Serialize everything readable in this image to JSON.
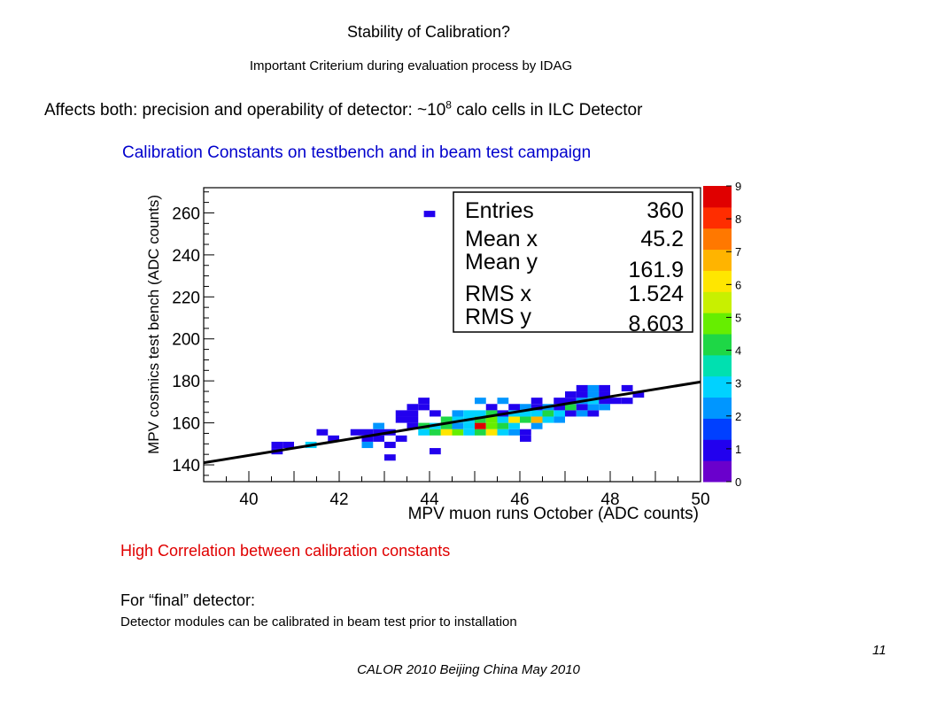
{
  "slide": {
    "title": "Stability of Calibration?",
    "subtitle": "Important Criterium during evaluation process by IDAG",
    "affects_prefix": "Affects both: precision and operability of detector: ~10",
    "affects_exponent": "8",
    "affects_suffix": " calo cells in ILC Detector",
    "calib_heading": "Calibration Constants on testbench and in beam test campaign",
    "correlation_note": "High Correlation between calibration constants",
    "final_label": "For “final” detector:",
    "final_desc": "Detector modules can be calibrated in beam test prior to installation",
    "page_number": "11",
    "footer": "CALOR 2010 Beijing China May 2010"
  },
  "colors": {
    "title_blue": "#0000cc",
    "note_red": "#e00000"
  },
  "chart_data": {
    "type": "heatmap",
    "title": "",
    "xlabel": "MPV muon runs October (ADC counts)",
    "ylabel": "MPV cosmics test bench (ADC counts)",
    "xlim": [
      39,
      50
    ],
    "ylim": [
      132,
      272
    ],
    "xticks": [
      40,
      42,
      44,
      46,
      48,
      50
    ],
    "yticks": [
      140,
      160,
      180,
      200,
      220,
      240,
      260
    ],
    "z_range": [
      0,
      9
    ],
    "z_ticks": [
      0,
      1,
      2,
      3,
      4,
      5,
      6,
      7,
      8,
      9
    ],
    "bin_size": {
      "x": 0.25,
      "y": 3
    },
    "fit_line": {
      "x": [
        39,
        50
      ],
      "y": [
        141,
        179.5
      ]
    },
    "stats_box": [
      {
        "label": "Entries",
        "value": "360"
      },
      {
        "label": "Mean x",
        "value": "45.2"
      },
      {
        "label": "Mean y",
        "value": "161.9"
      },
      {
        "label": "RMS x",
        "value": "1.524"
      },
      {
        "label": "RMS y",
        "value": "8.603"
      }
    ],
    "bins": [
      [
        44.0,
        259.5,
        1
      ],
      [
        40.625,
        149.5,
        1
      ],
      [
        40.875,
        149.5,
        1
      ],
      [
        40.625,
        146.5,
        1
      ],
      [
        41.375,
        149.5,
        3
      ],
      [
        41.625,
        155.5,
        1
      ],
      [
        41.875,
        152.5,
        1
      ],
      [
        42.375,
        155.5,
        1
      ],
      [
        42.625,
        155.5,
        1
      ],
      [
        42.625,
        152.5,
        1
      ],
      [
        42.875,
        155.5,
        1
      ],
      [
        42.625,
        149.5,
        2
      ],
      [
        42.875,
        152.5,
        1
      ],
      [
        43.125,
        149.5,
        1
      ],
      [
        43.125,
        143.5,
        1
      ],
      [
        42.875,
        158.5,
        2
      ],
      [
        43.125,
        155.5,
        1
      ],
      [
        43.375,
        152.5,
        1
      ],
      [
        43.375,
        161.5,
        1
      ],
      [
        43.625,
        161.5,
        1
      ],
      [
        43.625,
        158.5,
        1
      ],
      [
        43.875,
        158.5,
        4
      ],
      [
        43.375,
        164.5,
        1
      ],
      [
        43.625,
        164.5,
        1
      ],
      [
        43.625,
        167.5,
        1
      ],
      [
        43.875,
        167.5,
        1
      ],
      [
        43.875,
        170.5,
        1
      ],
      [
        43.875,
        155.5,
        3
      ],
      [
        44.125,
        155.5,
        4
      ],
      [
        44.375,
        155.5,
        6
      ],
      [
        44.625,
        155.5,
        5
      ],
      [
        44.125,
        158.5,
        3
      ],
      [
        44.375,
        158.5,
        4
      ],
      [
        44.625,
        158.5,
        2
      ],
      [
        44.875,
        158.5,
        3
      ],
      [
        44.375,
        161.5,
        4
      ],
      [
        44.625,
        161.5,
        3
      ],
      [
        44.875,
        161.5,
        3
      ],
      [
        44.125,
        164.5,
        1
      ],
      [
        44.625,
        164.5,
        2
      ],
      [
        44.875,
        164.5,
        3
      ],
      [
        44.125,
        146.5,
        1
      ],
      [
        44.875,
        155.5,
        3
      ],
      [
        45.125,
        155.5,
        4
      ],
      [
        45.375,
        155.5,
        6
      ],
      [
        45.625,
        155.5,
        3
      ],
      [
        45.875,
        155.5,
        2
      ],
      [
        45.125,
        158.5,
        9
      ],
      [
        45.375,
        158.5,
        5
      ],
      [
        45.625,
        158.5,
        4
      ],
      [
        45.875,
        158.5,
        3
      ],
      [
        45.125,
        161.5,
        4
      ],
      [
        45.375,
        161.5,
        5
      ],
      [
        45.625,
        161.5,
        3
      ],
      [
        45.875,
        161.5,
        6
      ],
      [
        45.125,
        164.5,
        3
      ],
      [
        45.375,
        164.5,
        4
      ],
      [
        45.625,
        164.5,
        1
      ],
      [
        45.875,
        164.5,
        3
      ],
      [
        45.375,
        167.5,
        1
      ],
      [
        45.875,
        167.5,
        1
      ],
      [
        45.125,
        170.5,
        2
      ],
      [
        45.625,
        170.5,
        2
      ],
      [
        46.125,
        155.5,
        1
      ],
      [
        46.125,
        152.5,
        1
      ],
      [
        46.375,
        158.5,
        2
      ],
      [
        46.125,
        161.5,
        4
      ],
      [
        46.375,
        161.5,
        7
      ],
      [
        46.625,
        161.5,
        3
      ],
      [
        46.875,
        161.5,
        2
      ],
      [
        46.125,
        164.5,
        3
      ],
      [
        46.375,
        164.5,
        3
      ],
      [
        46.625,
        164.5,
        4
      ],
      [
        46.875,
        164.5,
        3
      ],
      [
        46.125,
        167.5,
        2
      ],
      [
        46.375,
        167.5,
        1
      ],
      [
        46.625,
        167.5,
        2
      ],
      [
        46.875,
        167.5,
        1
      ],
      [
        46.375,
        170.5,
        1
      ],
      [
        46.875,
        170.5,
        1
      ],
      [
        47.125,
        164.5,
        1
      ],
      [
        47.375,
        164.5,
        2
      ],
      [
        47.625,
        164.5,
        1
      ],
      [
        47.125,
        167.5,
        4
      ],
      [
        47.375,
        167.5,
        1
      ],
      [
        47.625,
        167.5,
        2
      ],
      [
        47.875,
        167.5,
        2
      ],
      [
        47.125,
        170.5,
        1
      ],
      [
        47.375,
        170.5,
        2
      ],
      [
        47.625,
        170.5,
        3
      ],
      [
        47.875,
        170.5,
        1
      ],
      [
        47.125,
        173.5,
        1
      ],
      [
        47.375,
        173.5,
        1
      ],
      [
        47.625,
        173.5,
        2
      ],
      [
        47.875,
        173.5,
        1
      ],
      [
        47.375,
        176.5,
        1
      ],
      [
        47.625,
        176.5,
        2
      ],
      [
        47.875,
        176.5,
        1
      ],
      [
        48.125,
        170.5,
        1
      ],
      [
        48.375,
        170.5,
        1
      ],
      [
        48.375,
        176.5,
        1
      ],
      [
        48.625,
        173.5,
        1
      ]
    ]
  }
}
